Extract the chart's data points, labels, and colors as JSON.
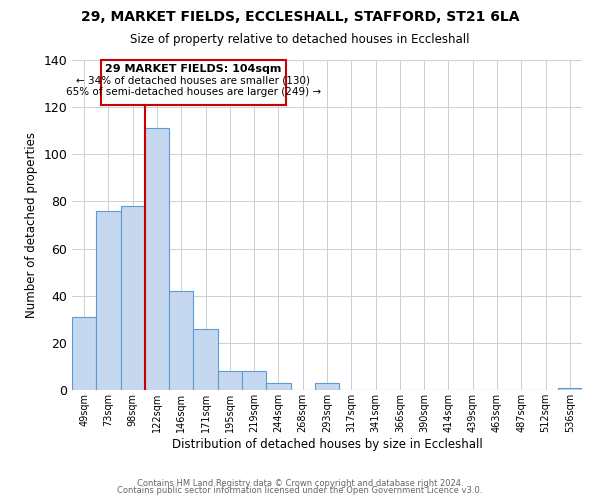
{
  "title1": "29, MARKET FIELDS, ECCLESHALL, STAFFORD, ST21 6LA",
  "title2": "Size of property relative to detached houses in Eccleshall",
  "xlabel": "Distribution of detached houses by size in Eccleshall",
  "ylabel": "Number of detached properties",
  "bar_labels": [
    "49sqm",
    "73sqm",
    "98sqm",
    "122sqm",
    "146sqm",
    "171sqm",
    "195sqm",
    "219sqm",
    "244sqm",
    "268sqm",
    "293sqm",
    "317sqm",
    "341sqm",
    "366sqm",
    "390sqm",
    "414sqm",
    "439sqm",
    "463sqm",
    "487sqm",
    "512sqm",
    "536sqm"
  ],
  "bar_values": [
    31,
    76,
    78,
    111,
    42,
    26,
    8,
    8,
    3,
    0,
    3,
    0,
    0,
    0,
    0,
    0,
    0,
    0,
    0,
    0,
    1
  ],
  "bar_color": "#c5d8f0",
  "bar_edgecolor": "#5b9bd5",
  "ylim": [
    0,
    140
  ],
  "yticks": [
    0,
    20,
    40,
    60,
    80,
    100,
    120,
    140
  ],
  "property_line_x": 2.5,
  "property_line_color": "#cc0000",
  "annotation_line1": "29 MARKET FIELDS: 104sqm",
  "annotation_line2": "← 34% of detached houses are smaller (130)",
  "annotation_line3": "65% of semi-detached houses are larger (249) →",
  "annotation_box_color": "#cc0000",
  "footer1": "Contains HM Land Registry data © Crown copyright and database right 2024.",
  "footer2": "Contains public sector information licensed under the Open Government Licence v3.0.",
  "background_color": "#ffffff",
  "grid_color": "#c8d0d8"
}
